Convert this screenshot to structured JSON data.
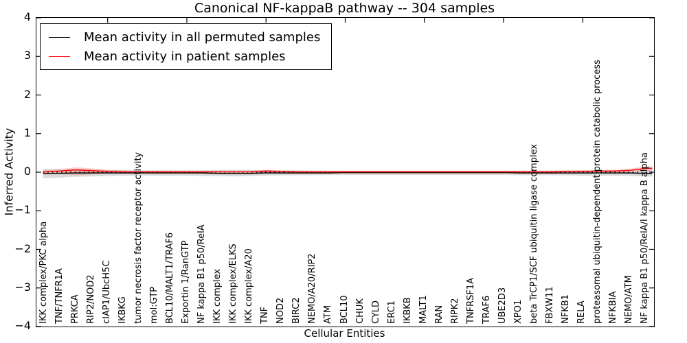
{
  "colors": {
    "background": "#ffffff",
    "axis": "#000000",
    "permuted_line": "#000000",
    "patient_line": "#ff0000",
    "permuted_band": "#000000",
    "patient_band": "#ff0000"
  },
  "chart_data": {
    "type": "line",
    "title": "Canonical NF-kappaB pathway -- 304 samples",
    "xlabel": "Cellular Entities",
    "ylabel": "Inferred Activity",
    "ylim": [
      -4,
      4
    ],
    "ytick_values": [
      4,
      3,
      2,
      1,
      0,
      -1,
      -2,
      -3,
      -4
    ],
    "ytick_labels": [
      "4",
      "3",
      "2",
      "1",
      "0",
      "−1",
      "−2",
      "−3",
      "−4"
    ],
    "grid": false,
    "zero_line": true,
    "legend_position": "upper left",
    "categories": [
      "IKK complex/PKC alpha",
      "TNF/TNFR1A",
      "PRKCA",
      "RIP2/NOD2",
      "cIAP1/UbcH5C",
      "IKBKG",
      "tumor necrosis factor receptor activity",
      "mol:GTP",
      "BCL10/MALT1/TRAF6",
      "Exportin 1/RanGTP",
      "NF kappa B1 p50/RelA",
      "IKK complex",
      "IKK complex/ELKS",
      "IKK complex/A20",
      "TNF",
      "NOD2",
      "BIRC2",
      "NEMO/A20/RIP2",
      "ATM",
      "BCL10",
      "CHUK",
      "CYLD",
      "ERC1",
      "IKBKB",
      "MALT1",
      "RAN",
      "RIPK2",
      "TNFRSF1A",
      "TRAF6",
      "UBE2D3",
      "XPO1",
      "beta TrCP1/SCF ubiquitin ligase complex",
      "FBXW11",
      "NFKB1",
      "RELA",
      "proteasomal ubiquitin-dependent protein catabolic process",
      "NFKBIA",
      "NEMO/ATM",
      "NF kappa B1 p50/RelA/I kappa B alpha"
    ],
    "series": [
      {
        "name": "Mean activity in all permuted samples",
        "id": "permuted-mean-line",
        "color": "#000000",
        "values": [
          -0.04,
          -0.03,
          -0.02,
          -0.02,
          -0.02,
          -0.02,
          -0.02,
          -0.02,
          -0.02,
          -0.02,
          -0.02,
          -0.03,
          -0.03,
          -0.03,
          -0.02,
          -0.02,
          -0.02,
          -0.02,
          -0.02,
          -0.01,
          -0.01,
          -0.01,
          -0.01,
          -0.01,
          -0.01,
          -0.01,
          -0.01,
          -0.01,
          -0.01,
          -0.01,
          -0.02,
          -0.02,
          -0.02,
          -0.02,
          -0.02,
          -0.02,
          -0.02,
          -0.02,
          -0.03
        ]
      },
      {
        "name": "Mean activity in patient samples",
        "id": "patient-mean-line",
        "color": "#ff0000",
        "values": [
          0.01,
          0.03,
          0.06,
          0.04,
          0.02,
          0.01,
          0.01,
          0.01,
          0.01,
          0.01,
          0.01,
          0.01,
          0.01,
          0.01,
          0.03,
          0.02,
          0.01,
          0.01,
          0.01,
          0.01,
          0.01,
          0.01,
          0.01,
          0.01,
          0.01,
          0.01,
          0.01,
          0.01,
          0.01,
          0.01,
          0.01,
          0.01,
          0.01,
          0.02,
          0.02,
          0.03,
          0.03,
          0.05,
          0.1
        ]
      }
    ],
    "bands": [
      {
        "id": "permuted-samples-band",
        "color": "#000000",
        "opacity": 0.14,
        "low": [
          -0.16,
          -0.14,
          -0.12,
          -0.11,
          -0.1,
          -0.09,
          -0.09,
          -0.09,
          -0.09,
          -0.09,
          -0.1,
          -0.1,
          -0.11,
          -0.1,
          -0.09,
          -0.08,
          -0.08,
          -0.08,
          -0.07,
          -0.07,
          -0.07,
          -0.07,
          -0.07,
          -0.07,
          -0.07,
          -0.07,
          -0.07,
          -0.07,
          -0.07,
          -0.07,
          -0.08,
          -0.08,
          -0.08,
          -0.08,
          -0.09,
          -0.09,
          -0.09,
          -0.1,
          -0.11
        ],
        "high": [
          0.09,
          0.08,
          0.08,
          0.07,
          0.06,
          0.06,
          0.05,
          0.05,
          0.05,
          0.05,
          0.05,
          0.06,
          0.06,
          0.06,
          0.05,
          0.05,
          0.05,
          0.04,
          0.04,
          0.04,
          0.04,
          0.04,
          0.04,
          0.04,
          0.04,
          0.04,
          0.04,
          0.04,
          0.04,
          0.04,
          0.04,
          0.04,
          0.04,
          0.05,
          0.05,
          0.05,
          0.05,
          0.05,
          0.06
        ]
      },
      {
        "id": "patient-samples-band",
        "color": "#ff0000",
        "opacity": 0.18,
        "low": [
          -0.02,
          -0.05,
          -0.08,
          -0.06,
          -0.03,
          -0.02,
          -0.01,
          -0.01,
          -0.01,
          -0.01,
          -0.01,
          -0.01,
          -0.01,
          -0.01,
          -0.02,
          -0.01,
          -0.01,
          -0.01,
          -0.01,
          -0.01,
          -0.01,
          -0.01,
          -0.01,
          -0.01,
          -0.01,
          -0.01,
          -0.01,
          -0.01,
          -0.01,
          -0.01,
          -0.01,
          -0.01,
          -0.01,
          0.0,
          0.0,
          0.0,
          0.0,
          0.01,
          0.03
        ],
        "high": [
          0.04,
          0.08,
          0.13,
          0.1,
          0.06,
          0.04,
          0.03,
          0.03,
          0.03,
          0.03,
          0.03,
          0.03,
          0.03,
          0.03,
          0.06,
          0.04,
          0.03,
          0.03,
          0.03,
          0.03,
          0.03,
          0.03,
          0.03,
          0.03,
          0.03,
          0.03,
          0.03,
          0.03,
          0.03,
          0.03,
          0.03,
          0.03,
          0.04,
          0.04,
          0.05,
          0.05,
          0.06,
          0.09,
          0.16
        ]
      }
    ]
  }
}
